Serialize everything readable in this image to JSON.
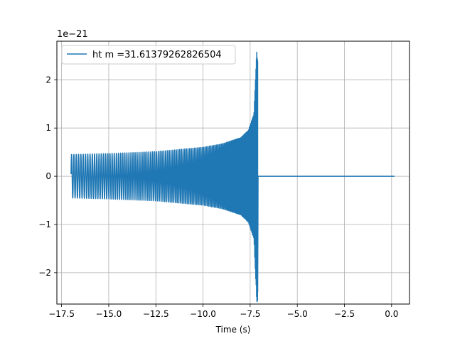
{
  "chart_data": {
    "type": "line",
    "title": "",
    "xlabel": "Time (s)",
    "ylabel": "",
    "y_offset_text": "1e−21",
    "xlim": [
      -17.75,
      0.95
    ],
    "ylim": [
      -2.65,
      2.8
    ],
    "x_ticks": [
      -17.5,
      -15.0,
      -12.5,
      -10.0,
      -7.5,
      -5.0,
      -2.5,
      0.0
    ],
    "x_tick_labels": [
      "−17.5",
      "−15.0",
      "−12.5",
      "−10.0",
      "−7.5",
      "−5.0",
      "−2.5",
      "0.0"
    ],
    "y_ticks": [
      -2,
      -1,
      0,
      1,
      2
    ],
    "y_tick_labels": [
      "−2",
      "−1",
      "0",
      "1",
      "2"
    ],
    "grid": true,
    "legend_position": "upper-left",
    "colors": {
      "series": "#1f77b4",
      "grid": "#b0b0b0",
      "axis": "#000000"
    },
    "series": [
      {
        "name": "ht m =31.61379262826504",
        "signal": "chirp",
        "t_start": -17.0,
        "t_merger": -7.1,
        "t_end": 0.15,
        "amplitude_envelope": [
          [
            -17.0,
            0.45
          ],
          [
            -15.0,
            0.47
          ],
          [
            -12.5,
            0.51
          ],
          [
            -10.0,
            0.6
          ],
          [
            -9.0,
            0.67
          ],
          [
            -8.0,
            0.8
          ],
          [
            -7.6,
            0.95
          ],
          [
            -7.3,
            1.3
          ],
          [
            -7.15,
            2.6
          ],
          [
            -7.1,
            2.6
          ]
        ],
        "merger_min": -2.4,
        "post_merger_value": 0.0
      }
    ]
  }
}
